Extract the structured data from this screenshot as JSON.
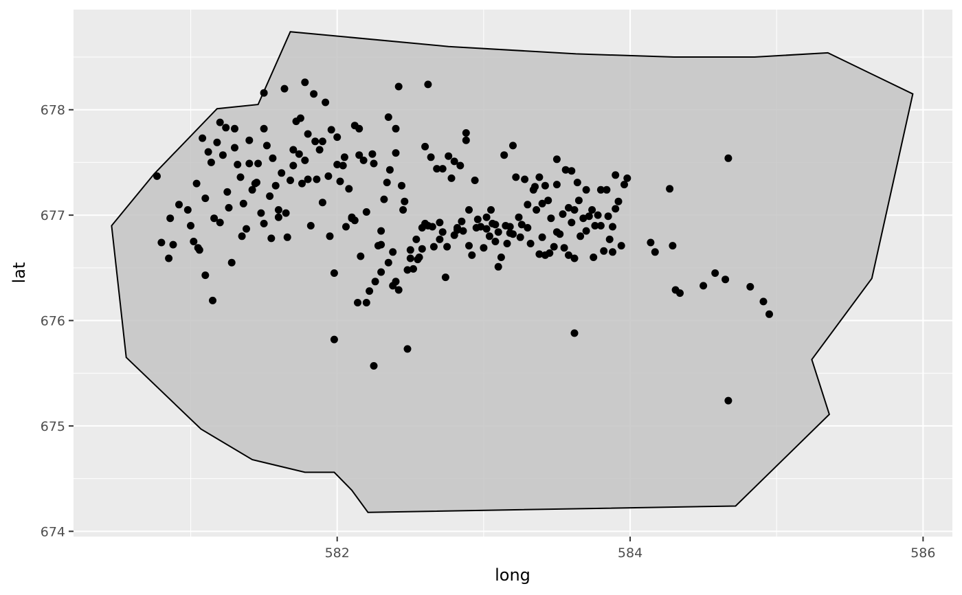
{
  "chart_data": {
    "type": "scatter",
    "title": "",
    "xlabel": "long",
    "ylabel": "lat",
    "xlim": [
      580.2,
      586.2
    ],
    "ylim": [
      673.95,
      678.95
    ],
    "x_major_ticks": [
      582,
      584,
      586
    ],
    "x_minor_ticks": [
      581,
      583,
      585
    ],
    "y_major_ticks": [
      674,
      675,
      676,
      677,
      678
    ],
    "y_minor_ticks": [
      674.5,
      675.5,
      676.5,
      677.5,
      678.5
    ],
    "grid": true,
    "legend": "none",
    "polygon": {
      "fill": "#c4c4c4",
      "stroke": "#000000",
      "vertices": [
        [
          580.46,
          676.9
        ],
        [
          580.75,
          677.39
        ],
        [
          581.18,
          678.01
        ],
        [
          581.46,
          678.05
        ],
        [
          581.68,
          678.74
        ],
        [
          582.76,
          678.6
        ],
        [
          583.63,
          678.53
        ],
        [
          584.3,
          678.5
        ],
        [
          584.85,
          678.5
        ],
        [
          585.35,
          678.54
        ],
        [
          585.93,
          678.15
        ],
        [
          585.65,
          676.4
        ],
        [
          585.24,
          675.63
        ],
        [
          585.36,
          675.11
        ],
        [
          584.72,
          674.24
        ],
        [
          582.21,
          674.18
        ],
        [
          582.1,
          674.39
        ],
        [
          581.98,
          674.56
        ],
        [
          581.78,
          674.56
        ],
        [
          581.42,
          674.68
        ],
        [
          581.07,
          674.97
        ],
        [
          580.56,
          675.65
        ],
        [
          580.46,
          676.9
        ]
      ]
    },
    "points": {
      "color": "#000000",
      "x": [
        580.77,
        580.8,
        580.85,
        580.86,
        580.88,
        580.92,
        580.98,
        581.0,
        581.02,
        581.04,
        581.06,
        581.08,
        581.1,
        581.12,
        581.14,
        581.16,
        581.18,
        581.2,
        581.22,
        581.24,
        581.26,
        581.28,
        581.3,
        581.32,
        581.34,
        581.36,
        581.38,
        581.4,
        581.42,
        581.44,
        581.46,
        581.48,
        581.5,
        581.52,
        581.54,
        581.56,
        581.58,
        581.6,
        581.62,
        581.64,
        581.66,
        581.68,
        581.7,
        581.72,
        581.74,
        581.76,
        581.78,
        581.8,
        581.82,
        581.84,
        581.86,
        581.88,
        581.9,
        581.92,
        581.94,
        581.96,
        581.98,
        582.0,
        582.02,
        582.04,
        582.06,
        582.08,
        582.1,
        582.12,
        582.14,
        582.16,
        582.18,
        582.2,
        582.22,
        582.24,
        582.26,
        582.28,
        582.3,
        582.32,
        582.34,
        582.36,
        582.38,
        582.4,
        582.42,
        582.44,
        582.46,
        582.48,
        582.5,
        582.52,
        582.54,
        582.56,
        582.58,
        582.6,
        582.62,
        582.64,
        582.66,
        582.68,
        582.7,
        582.72,
        582.74,
        582.76,
        582.78,
        582.8,
        582.82,
        582.84,
        582.86,
        582.88,
        582.9,
        582.92,
        582.94,
        582.96,
        582.98,
        583.0,
        583.02,
        583.04,
        583.06,
        583.08,
        583.1,
        583.12,
        583.14,
        583.16,
        583.18,
        583.2,
        583.22,
        583.24,
        583.26,
        583.28,
        583.3,
        583.32,
        583.34,
        583.36,
        583.38,
        583.4,
        583.42,
        583.44,
        583.46,
        583.48,
        583.5,
        583.52,
        583.54,
        583.56,
        583.58,
        583.6,
        583.62,
        583.64,
        583.66,
        583.68,
        583.7,
        583.72,
        583.74,
        583.76,
        583.78,
        583.8,
        583.82,
        583.84,
        583.86,
        583.88,
        583.9,
        583.92,
        583.94,
        583.96,
        583.98,
        584.14,
        584.17,
        584.27,
        584.29,
        584.31,
        584.34,
        584.5,
        584.58,
        584.65,
        584.67,
        584.82,
        584.91,
        584.95,
        581.2,
        581.7,
        582.2,
        582.6,
        583.3,
        583.6,
        581.4,
        581.9,
        582.4,
        582.8,
        583.2,
        583.7,
        581.1,
        581.5,
        582.1,
        582.5,
        582.9,
        583.4,
        583.8,
        581.3,
        581.8,
        582.3,
        582.7,
        583.1,
        583.5,
        581.6,
        582.0,
        582.45,
        582.85,
        583.25,
        583.65,
        581.25,
        581.75,
        582.25,
        582.65,
        583.05,
        583.45,
        583.85,
        581.45,
        581.95,
        582.35,
        582.75,
        583.15,
        583.55,
        581.15,
        581.65,
        582.15,
        582.55,
        582.95,
        583.35,
        583.75,
        581.35,
        581.85,
        582.05,
        582.42,
        582.58,
        582.82,
        583.02,
        583.18,
        583.42,
        583.62,
        581.05,
        581.55,
        582.12,
        582.38,
        582.72,
        583.08,
        583.38,
        583.58,
        583.88,
        582.3,
        582.4,
        582.35,
        583.62,
        584.67,
        581.98,
        582.48,
        582.62,
        581.5,
        581.78,
        582.15,
        582.88,
        583.5,
        583.9,
        582.25
      ],
      "y": [
        677.37,
        676.74,
        676.59,
        676.97,
        676.72,
        677.1,
        677.05,
        676.9,
        676.75,
        677.3,
        676.67,
        677.73,
        676.43,
        677.6,
        677.5,
        676.97,
        677.69,
        676.93,
        677.57,
        677.83,
        677.07,
        676.55,
        677.64,
        677.48,
        677.36,
        677.11,
        676.87,
        677.49,
        677.24,
        677.3,
        677.49,
        677.02,
        676.92,
        677.66,
        677.18,
        677.54,
        677.28,
        676.98,
        677.4,
        678.2,
        676.79,
        677.33,
        677.47,
        677.89,
        677.58,
        677.3,
        677.52,
        677.77,
        676.9,
        678.15,
        677.34,
        677.62,
        677.7,
        678.07,
        677.37,
        677.81,
        676.45,
        677.48,
        677.32,
        677.47,
        676.89,
        677.25,
        676.98,
        677.85,
        676.17,
        676.61,
        677.52,
        676.17,
        676.28,
        677.58,
        676.37,
        676.71,
        676.85,
        677.15,
        677.31,
        677.43,
        676.33,
        676.37,
        676.29,
        677.28,
        677.13,
        676.48,
        676.59,
        676.49,
        676.77,
        676.6,
        676.88,
        677.65,
        676.9,
        677.55,
        676.7,
        677.44,
        676.93,
        677.44,
        676.41,
        677.56,
        677.35,
        676.81,
        676.86,
        677.47,
        676.85,
        677.71,
        677.05,
        676.62,
        677.33,
        676.96,
        676.89,
        676.69,
        676.98,
        676.8,
        676.92,
        676.75,
        676.51,
        676.6,
        677.57,
        676.73,
        676.83,
        677.66,
        677.36,
        676.98,
        676.91,
        677.34,
        676.88,
        676.73,
        677.24,
        677.05,
        676.63,
        677.11,
        677.28,
        677.14,
        676.97,
        676.7,
        677.29,
        676.82,
        677.01,
        677.43,
        677.07,
        676.93,
        676.59,
        677.31,
        676.8,
        676.97,
        677.24,
        676.99,
        677.05,
        676.9,
        677.0,
        676.9,
        676.66,
        677.24,
        676.77,
        676.89,
        677.38,
        677.13,
        676.71,
        677.29,
        677.35,
        676.74,
        676.65,
        677.25,
        676.71,
        676.29,
        676.26,
        676.33,
        676.45,
        676.39,
        677.54,
        676.32,
        676.18,
        676.06,
        677.88,
        677.62,
        677.03,
        676.92,
        677.1,
        677.42,
        677.71,
        677.12,
        677.59,
        677.51,
        676.82,
        676.85,
        677.16,
        677.82,
        676.97,
        676.67,
        676.71,
        676.79,
        677.24,
        677.82,
        677.34,
        676.72,
        676.77,
        676.84,
        676.84,
        677.05,
        677.74,
        677.05,
        676.94,
        676.79,
        677.14,
        677.22,
        677.92,
        677.49,
        676.89,
        677.05,
        676.64,
        676.99,
        677.31,
        676.8,
        676.55,
        676.7,
        676.9,
        676.69,
        676.19,
        677.02,
        677.57,
        676.58,
        676.88,
        677.27,
        676.6,
        676.8,
        677.7,
        677.55,
        678.22,
        676.68,
        676.88,
        676.87,
        676.89,
        676.62,
        677.05,
        676.69,
        676.78,
        676.95,
        676.65,
        676.84,
        676.91,
        677.36,
        676.62,
        676.65,
        676.46,
        677.82,
        677.93,
        675.88,
        675.24,
        675.82,
        675.73,
        678.24,
        678.16,
        678.26,
        677.82,
        677.78,
        677.53,
        677.06,
        675.57
      ]
    }
  }
}
